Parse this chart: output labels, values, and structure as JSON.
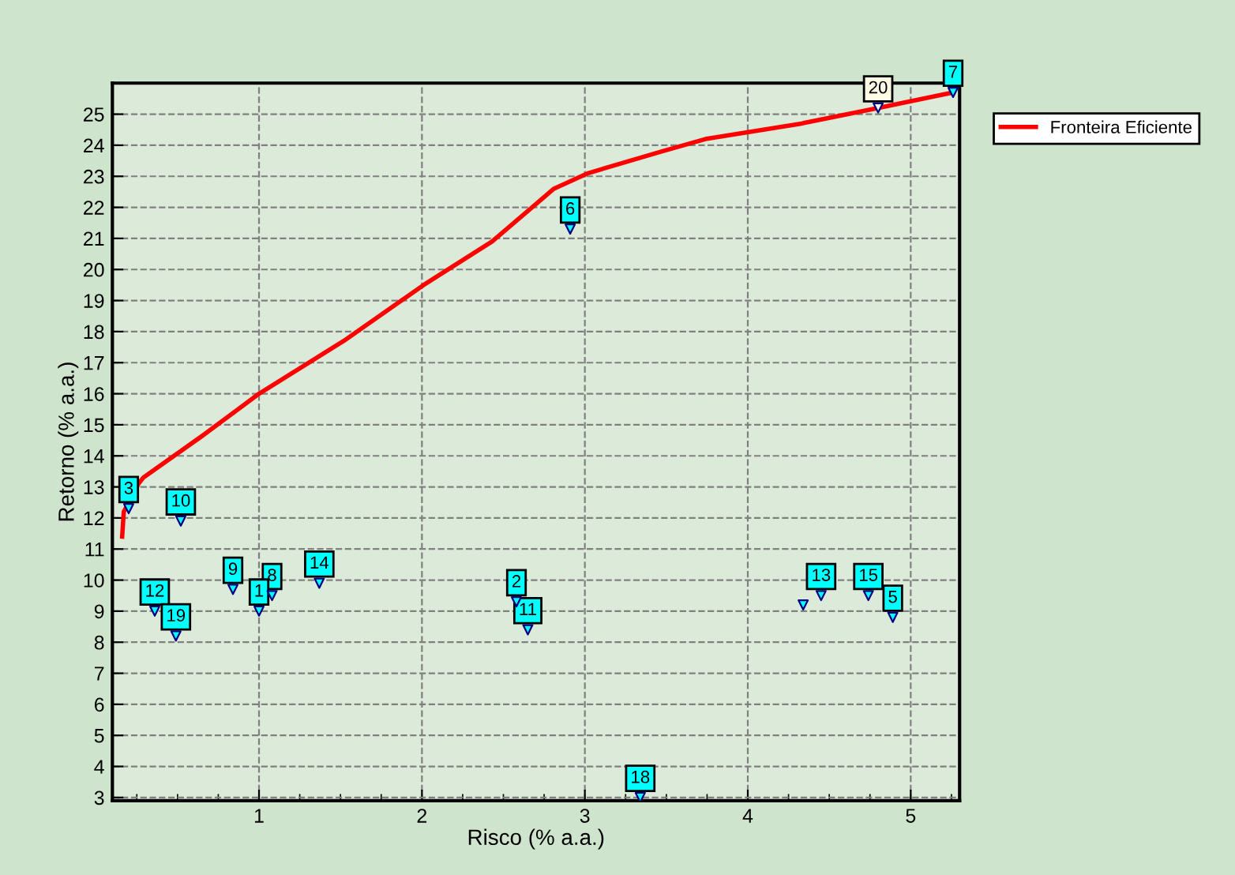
{
  "chart_data": {
    "type": "scatter",
    "xlabel": "Risco (% a.a.)",
    "ylabel": "Retorno (% a.a.)",
    "xlim": [
      0.1,
      5.3
    ],
    "ylim": [
      2.9,
      26
    ],
    "xticks": [
      {
        "value": 0.25,
        "label": null
      },
      {
        "value": 0.5,
        "label": null
      },
      {
        "value": 0.75,
        "label": null
      },
      1,
      {
        "value": 1.25,
        "label": null
      },
      {
        "value": 1.5,
        "label": null
      },
      {
        "value": 1.75,
        "label": null
      },
      2,
      {
        "value": 2.25,
        "label": null
      },
      {
        "value": 2.5,
        "label": null
      },
      {
        "value": 2.75,
        "label": null
      },
      3,
      {
        "value": 3.25,
        "label": null
      },
      {
        "value": 3.5,
        "label": null
      },
      {
        "value": 3.75,
        "label": null
      },
      4,
      {
        "value": 4.25,
        "label": null
      },
      {
        "value": 4.5,
        "label": null
      },
      {
        "value": 4.75,
        "label": null
      },
      5,
      {
        "value": 5.25,
        "label": null
      }
    ],
    "yticks": [
      3,
      4,
      5,
      6,
      7,
      8,
      9,
      10,
      11,
      12,
      13,
      14,
      15,
      16,
      17,
      18,
      19,
      20,
      21,
      22,
      23,
      24,
      25
    ],
    "grid": true,
    "legend": "right",
    "series": [
      {
        "name": "Fronteira Eficiente",
        "type": "line",
        "color": "#ff0000",
        "marker": "none",
        "line_style": "solid",
        "x": [
          0.16,
          0.17,
          0.26,
          0.29,
          0.64,
          1.0,
          1.52,
          2.01,
          2.43,
          2.81,
          3.02,
          3.47,
          3.74,
          4.33,
          4.8,
          5.26
        ],
        "values": [
          11.4,
          12.2,
          13.1,
          13.3,
          14.6,
          16.0,
          17.7,
          19.5,
          20.9,
          22.6,
          23.1,
          23.8,
          24.2,
          24.7,
          25.2,
          25.7
        ]
      },
      {
        "color": "#00ffff",
        "marker": "triangle",
        "x": [
          0.2,
          0.52,
          0.84,
          1.08,
          1.0,
          1.37,
          0.36,
          0.49,
          2.58,
          2.65,
          4.34,
          4.45,
          4.74,
          4.89,
          3.34,
          2.91,
          5.26
        ],
        "values": [
          12.3,
          11.9,
          9.7,
          9.5,
          9.0,
          9.9,
          9.0,
          8.2,
          9.3,
          8.4,
          9.2,
          9.5,
          9.5,
          8.8,
          3.0,
          21.3,
          25.7
        ]
      },
      {
        "color": "#fffbe6",
        "marker": "triangle",
        "x": [
          4.8
        ],
        "values": [
          25.2
        ]
      }
    ],
    "annotations": [
      {
        "text": "3",
        "x": 0.2,
        "y": 12.3
      },
      {
        "text": "10",
        "x": 0.52,
        "y": 11.9
      },
      {
        "text": "9",
        "x": 0.84,
        "y": 9.7
      },
      {
        "text": "8",
        "x": 1.08,
        "y": 9.5
      },
      {
        "text": "1",
        "x": 1.0,
        "y": 9.0
      },
      {
        "text": "14",
        "x": 1.37,
        "y": 9.9
      },
      {
        "text": "12",
        "x": 0.36,
        "y": 9.0
      },
      {
        "text": "19",
        "x": 0.49,
        "y": 8.2
      },
      {
        "text": "2",
        "x": 2.58,
        "y": 9.3
      },
      {
        "text": "11",
        "x": 2.65,
        "y": 8.4
      },
      {
        "text": "13",
        "x": 4.45,
        "y": 9.5
      },
      {
        "text": "15",
        "x": 4.74,
        "y": 9.5
      },
      {
        "text": "5",
        "x": 4.89,
        "y": 8.8
      },
      {
        "text": "18",
        "x": 3.34,
        "y": 3.0
      },
      {
        "text": "6",
        "x": 2.91,
        "y": 21.3
      },
      {
        "text": "20",
        "x": 4.8,
        "y": 25.2
      },
      {
        "text": "7",
        "x": 5.26,
        "y": 25.7
      }
    ]
  }
}
